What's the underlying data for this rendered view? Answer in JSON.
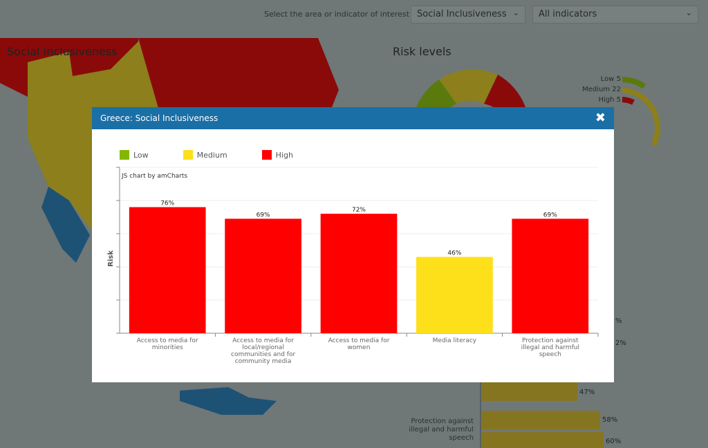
{
  "header": {
    "prompt": "Select the area or indicator of interest",
    "area_select": "Social Inclusiveness",
    "indicator_select": "All indicators"
  },
  "background": {
    "map_title": "Social Inclusiveness",
    "risk_title": "Risk levels",
    "risk_legend": [
      {
        "label": "Low 5",
        "color": "#6a8a10"
      },
      {
        "label": "Medium 22",
        "color": "#b4a018"
      },
      {
        "label": "High 5",
        "color": "#a00000"
      }
    ],
    "bg_bars": [
      {
        "label": "",
        "value": "%"
      },
      {
        "label": "",
        "value": "2%"
      },
      {
        "label": "Media literacy",
        "value": "47%"
      },
      {
        "label": "Protection against illegal and harmful speech",
        "value": "58%"
      },
      {
        "label": "",
        "value": "60%"
      }
    ]
  },
  "modal": {
    "title": "Greece: Social Inclusiveness",
    "close_icon": "close-x-icon",
    "legend": [
      {
        "label": "Low",
        "color": "#84b800"
      },
      {
        "label": "Medium",
        "color": "#fde01a"
      },
      {
        "label": "High",
        "color": "#ff0000"
      }
    ],
    "credit": "JS chart by amCharts"
  },
  "chart_data": {
    "type": "bar",
    "categories": [
      "Access to media for minorities",
      "Access to media for local/regional communities and for community media",
      "Access to media for women",
      "Media literacy",
      "Protection against illegal and harmful speech"
    ],
    "values": [
      76,
      69,
      72,
      46,
      69
    ],
    "labels": [
      "76%",
      "69%",
      "72%",
      "46%",
      "69%"
    ],
    "colors": [
      "#ff0000",
      "#ff0000",
      "#ff0000",
      "#fde01a",
      "#ff0000"
    ],
    "ylabel": "Risk",
    "xlabel": "",
    "ylim": [
      0,
      100
    ],
    "grid": true,
    "legend": "top-left"
  }
}
